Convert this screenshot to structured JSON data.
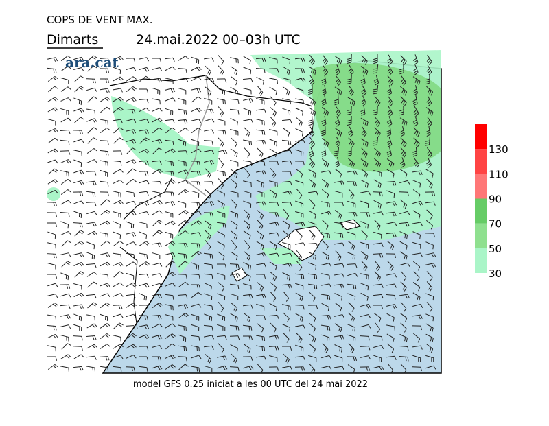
{
  "header": {
    "title": "COPS DE VENT MAX.",
    "day": "Dimarts",
    "period": "24.mai.2022 00–03h UTC",
    "brand": "ara.cat"
  },
  "footer": "model GFS 0.25 iniciat a les 00 UTC del 24 mai 2022",
  "colorbar": {
    "ticks": [
      30,
      50,
      70,
      90,
      110,
      130
    ],
    "colors": [
      "#aaf5c8",
      "#8fe08f",
      "#66cc66",
      "#ff7777",
      "#ff4444",
      "#ff0000"
    ]
  }
}
